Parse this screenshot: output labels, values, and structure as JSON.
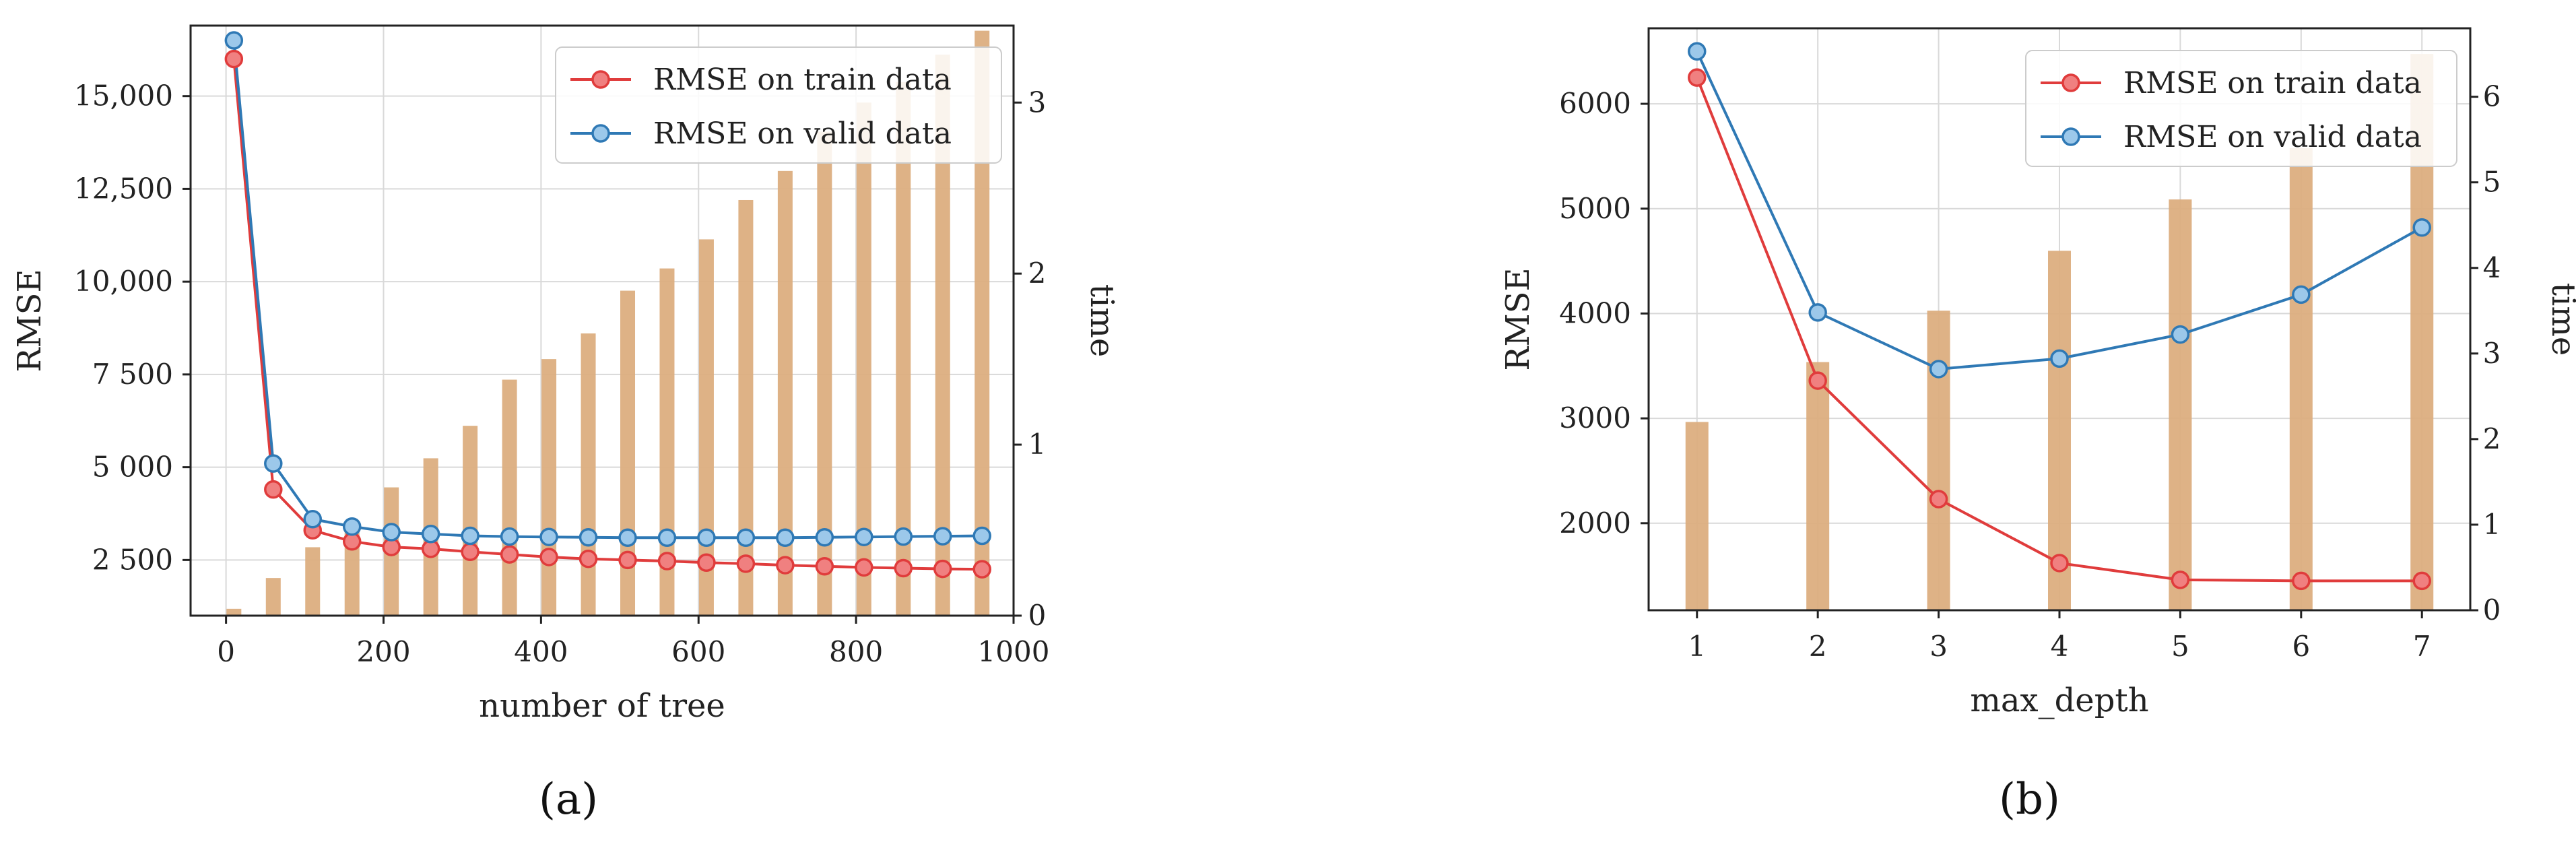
{
  "figure": {
    "panels": [
      {
        "label": "(a)"
      },
      {
        "label": "(b)"
      }
    ]
  },
  "chart_data": [
    {
      "type": "line",
      "secondary_type": "bar",
      "xlabel": "number of tree",
      "ylabel": "RMSE",
      "y2label": "time",
      "xlim": [
        -45,
        1000
      ],
      "ylim": [
        1000,
        16900
      ],
      "y2lim": [
        0,
        3.45
      ],
      "xticks": [
        0,
        200,
        400,
        600,
        800,
        1000
      ],
      "xtick_labels": [
        "0",
        "200",
        "400",
        "600",
        "800",
        "1000"
      ],
      "yticks": [
        2500,
        5000,
        7500,
        10000,
        12500,
        15000
      ],
      "ytick_labels": [
        "2 500",
        "5 000",
        "7 500",
        "10,000",
        "12,500",
        "15,000"
      ],
      "y2ticks": [
        0,
        1,
        2,
        3
      ],
      "y2tick_labels": [
        "0",
        "1",
        "2",
        "3"
      ],
      "grid": true,
      "legend": "top-right",
      "x": [
        10,
        60,
        110,
        160,
        210,
        260,
        310,
        360,
        410,
        460,
        510,
        560,
        610,
        660,
        710,
        760,
        810,
        860,
        910,
        960
      ],
      "series": [
        {
          "name": "RMSE on train data",
          "color": "#e03c3c",
          "fill": "#f08080",
          "values": [
            16000,
            4400,
            3300,
            3000,
            2850,
            2800,
            2720,
            2650,
            2580,
            2530,
            2500,
            2470,
            2430,
            2400,
            2360,
            2330,
            2300,
            2280,
            2260,
            2250
          ]
        },
        {
          "name": "RMSE on valid data",
          "color": "#2f79b5",
          "fill": "#9cc8ea",
          "values": [
            16500,
            5100,
            3600,
            3400,
            3250,
            3200,
            3150,
            3130,
            3120,
            3110,
            3100,
            3100,
            3100,
            3100,
            3100,
            3110,
            3120,
            3130,
            3140,
            3150
          ]
        }
      ],
      "bars": {
        "name": "time",
        "color": "#dcae80",
        "values": [
          0.04,
          0.22,
          0.4,
          0.55,
          0.75,
          0.92,
          1.11,
          1.38,
          1.5,
          1.65,
          1.9,
          2.03,
          2.2,
          2.43,
          2.6,
          2.83,
          3.0,
          3.12,
          3.28,
          3.42
        ]
      }
    },
    {
      "type": "line",
      "secondary_type": "bar",
      "xlabel": "max_depth",
      "ylabel": "RMSE",
      "y2label": "time",
      "xlim": [
        0.6,
        7.4
      ],
      "ylim": [
        1170,
        6720
      ],
      "y2lim": [
        0,
        6.8
      ],
      "xticks": [
        1,
        2,
        3,
        4,
        5,
        6,
        7
      ],
      "xtick_labels": [
        "1",
        "2",
        "3",
        "4",
        "5",
        "6",
        "7"
      ],
      "yticks": [
        2000,
        3000,
        4000,
        5000,
        6000
      ],
      "ytick_labels": [
        "2000",
        "3000",
        "4000",
        "5000",
        "6000"
      ],
      "y2ticks": [
        0,
        1,
        2,
        3,
        4,
        5,
        6
      ],
      "y2tick_labels": [
        "0",
        "1",
        "2",
        "3",
        "4",
        "5",
        "6"
      ],
      "grid": true,
      "legend": "top-right",
      "x": [
        1,
        2,
        3,
        4,
        5,
        6,
        7
      ],
      "series": [
        {
          "name": "RMSE on train data",
          "color": "#e03c3c",
          "fill": "#f08080",
          "values": [
            6250,
            3360,
            2230,
            1620,
            1460,
            1450,
            1450
          ]
        },
        {
          "name": "RMSE on valid data",
          "color": "#2f79b5",
          "fill": "#9cc8ea",
          "values": [
            6500,
            4010,
            3470,
            3570,
            3800,
            4180,
            4820
          ]
        }
      ],
      "bars": {
        "name": "time",
        "color": "#dcae80",
        "values": [
          2.2,
          2.9,
          3.5,
          4.2,
          4.8,
          5.4,
          6.5
        ]
      }
    }
  ]
}
